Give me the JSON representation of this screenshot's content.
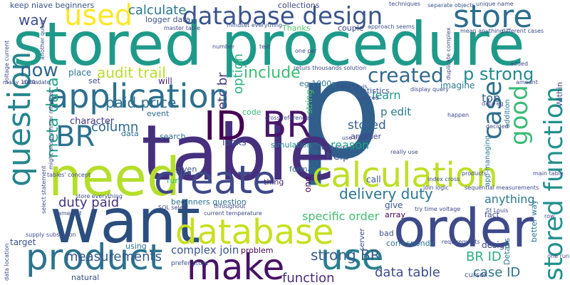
{
  "words": [
    {
      "text": "p",
      "color": "#2f5f8a"
    },
    {
      "text": "table",
      "color": "#46307d"
    },
    {
      "text": "stored procedure",
      "color": "#1f9a8a"
    },
    {
      "text": "want",
      "color": "#2b4e7e"
    },
    {
      "text": "need",
      "color": "#b5de2b"
    },
    {
      "text": "order",
      "color": "#3e4a89"
    },
    {
      "text": "database",
      "color": "#c8e020"
    },
    {
      "text": "create",
      "color": "#3f4889"
    },
    {
      "text": "application",
      "color": "#2d6f8e"
    },
    {
      "text": "calculation",
      "color": "#bddf26"
    },
    {
      "text": "make",
      "color": "#471365"
    },
    {
      "text": "product",
      "color": "#2c728e"
    },
    {
      "text": "use",
      "color": "#27808e"
    },
    {
      "text": "database design",
      "color": "#3a548c"
    },
    {
      "text": "store",
      "color": "#2e6e8e"
    },
    {
      "text": "ID",
      "color": "#440154"
    },
    {
      "text": "BR",
      "color": "#481668"
    },
    {
      "text": "BR",
      "color": "#2c728e"
    },
    {
      "text": "used",
      "color": "#fde725"
    },
    {
      "text": "question",
      "color": "#25858e"
    },
    {
      "text": "stored function",
      "color": "#21918c"
    },
    {
      "text": "good",
      "color": "#3bbb75"
    },
    {
      "text": "case",
      "color": "#2e6d8e"
    },
    {
      "text": "created",
      "color": "#31688e"
    },
    {
      "text": "p strong",
      "color": "#23898e"
    },
    {
      "text": "now",
      "color": "#32658e"
    },
    {
      "text": "way",
      "color": "#3c4f8a"
    },
    {
      "text": "keep niave beginners",
      "color": "#3b528b"
    },
    {
      "text": "calculate",
      "color": "#2a788e"
    },
    {
      "text": "audit trail",
      "color": "#b8de29"
    },
    {
      "text": "paid price",
      "color": "#2e6f8e"
    },
    {
      "text": "include",
      "color": "#3dbc74"
    },
    {
      "text": "duty paid",
      "color": "#46337e"
    },
    {
      "text": "delivery duty",
      "color": "#2a768e"
    },
    {
      "text": "meta data",
      "color": "#22a785"
    },
    {
      "text": "option",
      "color": "#2db27d"
    },
    {
      "text": "etc br",
      "color": "#443983"
    },
    {
      "text": "column",
      "color": "#31678e"
    },
    {
      "text": "strong BR",
      "color": "#365c8d"
    },
    {
      "text": "BR ID",
      "color": "#29af7f"
    },
    {
      "text": "measurements",
      "color": "#38588c"
    },
    {
      "text": "data table",
      "color": "#3e4a89"
    },
    {
      "text": "case ID",
      "color": "#2c738e"
    },
    {
      "text": "function",
      "color": "#472c7a"
    },
    {
      "text": "complex join",
      "color": "#3b528b"
    },
    {
      "text": "specific order",
      "color": "#42be71"
    },
    {
      "text": "anything",
      "color": "#2a788e"
    },
    {
      "text": "learn",
      "color": "#1f968b"
    },
    {
      "text": "top",
      "color": "#34608d"
    },
    {
      "text": "reason",
      "color": "#1fa088"
    },
    {
      "text": "stored",
      "color": "#34618d"
    },
    {
      "text": "p edit",
      "color": "#2a788e"
    },
    {
      "text": "help",
      "color": "#39568c"
    },
    {
      "text": "character",
      "color": "#453781"
    },
    {
      "text": "looks",
      "color": "#3e4c8a"
    },
    {
      "text": "imagine",
      "color": "#2a768e"
    },
    {
      "text": "statistics",
      "color": "#3a538b"
    },
    {
      "text": "eg 1000s",
      "color": "#2c738e"
    },
    {
      "text": "collections",
      "color": "#3f4788"
    },
    {
      "text": "Thanks",
      "color": "#56c667"
    },
    {
      "text": "couple",
      "color": "#3e4989"
    },
    {
      "text": "logger data",
      "color": "#3c508b"
    },
    {
      "text": "place",
      "color": "#2a778e"
    },
    {
      "text": "set",
      "color": "#3e4c8a"
    },
    {
      "text": "will",
      "color": "#482475"
    },
    {
      "text": "string",
      "color": "#4ac16d"
    },
    {
      "text": "code",
      "color": "#38b977"
    },
    {
      "text": "data",
      "color": "#2f6c8e"
    },
    {
      "text": "event",
      "color": "#2f6b8e"
    },
    {
      "text": "search",
      "color": "#2d708e"
    },
    {
      "text": "given",
      "color": "#3a548c"
    },
    {
      "text": "run",
      "color": "#3dbc74"
    },
    {
      "text": "beginners question",
      "color": "#2e6e8e"
    },
    {
      "text": "simulation",
      "color": "#24878e"
    },
    {
      "text": "thing",
      "color": "#482878"
    },
    {
      "text": "format",
      "color": "#31688e"
    },
    {
      "text": "call",
      "color": "#3b528b"
    },
    {
      "text": "give",
      "color": "#38588c"
    },
    {
      "text": "array",
      "color": "#440154"
    },
    {
      "text": "bad",
      "color": "#3b528b"
    },
    {
      "text": "corresponds",
      "color": "#2c728e"
    },
    {
      "text": "problem",
      "color": "#440154"
    },
    {
      "text": "using",
      "color": "#2c738e"
    },
    {
      "text": "natural",
      "color": "#3b528b"
    },
    {
      "text": "target",
      "color": "#3b528b"
    },
    {
      "text": "design",
      "color": "#3e4a89"
    },
    {
      "text": "fact",
      "color": "#3e4a89"
    },
    {
      "text": "another",
      "color": "#3f4788"
    },
    {
      "text": "Details",
      "color": "#2a788e"
    },
    {
      "text": "better way",
      "color": "#2a788e"
    },
    {
      "text": "Within",
      "color": "#3e4a89"
    },
    {
      "text": "app managing",
      "color": "#2a788e"
    },
    {
      "text": "addition",
      "color": "#2a788e"
    },
    {
      "text": "one",
      "color": "#440154"
    },
    {
      "text": "server",
      "color": "#3e4a89"
    },
    {
      "text": "cursor",
      "color": "#3e4a89"
    },
    {
      "text": "prefer store",
      "color": "#3b528b"
    },
    {
      "text": "master table",
      "color": "#3e4a89"
    },
    {
      "text": "mindset everything",
      "color": "#3b528b"
    },
    {
      "text": "approach seems",
      "color": "#3b528b"
    },
    {
      "text": "techniques",
      "color": "#3e4a89"
    },
    {
      "text": "unique name",
      "color": "#3e4a89"
    },
    {
      "text": "mean anything",
      "color": "#3e4a89"
    },
    {
      "text": "different cases",
      "color": "#3e4a89"
    },
    {
      "text": "separate objects",
      "color": "#3b528b"
    },
    {
      "text": "returs thousands solution",
      "color": "#3e4a89"
    },
    {
      "text": "data eg",
      "color": "#3e4a89"
    },
    {
      "text": "index cross",
      "color": "#3e4a89"
    },
    {
      "text": "join logic",
      "color": "#3e4a89"
    },
    {
      "text": "try time voltage",
      "color": "#3e4a89"
    },
    {
      "text": "sequential measurements",
      "color": "#3e4a89"
    },
    {
      "text": "main table",
      "color": "#3e4a89"
    },
    {
      "text": "St Louis",
      "color": "#3e4a89"
    },
    {
      "text": "Saint Louis",
      "color": "#3e4a89"
    },
    {
      "text": "DataControls",
      "color": "#3e4a89"
    },
    {
      "text": "cross references",
      "color": "#3e4a89"
    },
    {
      "text": "really use",
      "color": "#3e4a89"
    },
    {
      "text": "current temperature",
      "color": "#3e4a89"
    },
    {
      "text": "SQL select",
      "color": "#3e4a89"
    },
    {
      "text": "select statement",
      "color": "#3e4a89"
    },
    {
      "text": "might programmer mindset",
      "color": "#3e4a89"
    },
    {
      "text": "many 1000s",
      "color": "#3e4a89"
    },
    {
      "text": "voltage current",
      "color": "#3e4a89"
    },
    {
      "text": "tables' concept",
      "color": "#3e4a89"
    },
    {
      "text": "store everything",
      "color": "#3e4a89"
    },
    {
      "text": "supply substation",
      "color": "#3e4a89"
    },
    {
      "text": "data location",
      "color": "#3e4a89"
    },
    {
      "text": "name put",
      "color": "#3e4a89"
    },
    {
      "text": "throughout",
      "color": "#3e4a89"
    },
    {
      "text": "products'",
      "color": "#3e4a89"
    },
    {
      "text": "requirements",
      "color": "#3e4a89"
    },
    {
      "text": "noticed",
      "color": "#3e4a89"
    },
    {
      "text": "use index",
      "color": "#3e4a89"
    },
    {
      "text": "display query",
      "color": "#3e4a89"
    },
    {
      "text": "one per",
      "color": "#3e4a89"
    },
    {
      "text": "text",
      "color": "#3e4a89"
    },
    {
      "text": "number",
      "color": "#3e4a89"
    },
    {
      "text": "data date",
      "color": "#3e4a89"
    },
    {
      "text": "another query",
      "color": "#3e4a89"
    },
    {
      "text": "duplicate complex",
      "color": "#3e4a89"
    },
    {
      "text": "happen",
      "color": "#3e4a89"
    },
    {
      "text": "decided",
      "color": "#3e4a89"
    },
    {
      "text": "amount",
      "color": "#3e4a89"
    },
    {
      "text": "added",
      "color": "#3e4a89"
    },
    {
      "text": "row",
      "color": "#3e4a89"
    },
    {
      "text": "one run",
      "color": "#3e4a89"
    }
  ]
}
